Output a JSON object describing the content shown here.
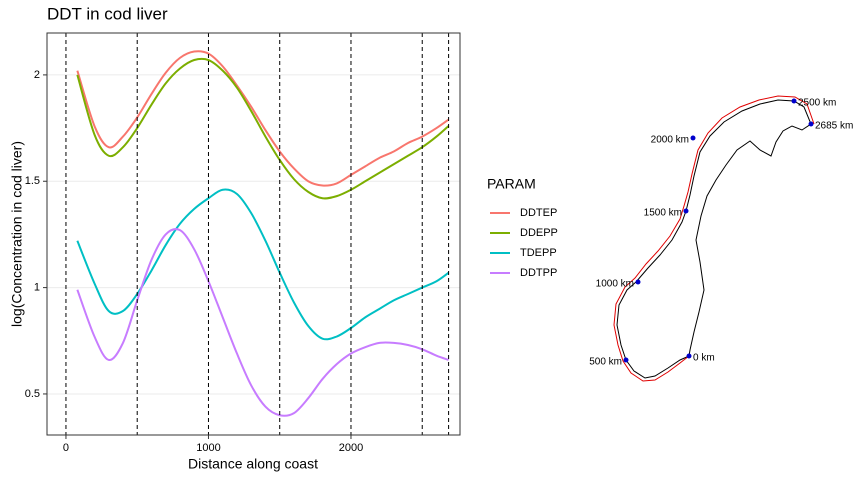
{
  "chart_data": {
    "type": "line",
    "title": "DDT in cod liver",
    "x_label": "Distance along coast",
    "y_label": "log(Concentration in cod liver)",
    "legend_title": "PARAM",
    "x": [
      80,
      200,
      300,
      400,
      500,
      600,
      700,
      800,
      900,
      1000,
      1100,
      1200,
      1300,
      1400,
      1500,
      1600,
      1700,
      1800,
      1900,
      2000,
      2100,
      2200,
      2300,
      2400,
      2500,
      2600,
      2685
    ],
    "series": [
      {
        "name": "DDTEP",
        "color": "#f8766d",
        "values": [
          2.02,
          1.76,
          1.66,
          1.71,
          1.8,
          1.91,
          2.01,
          2.08,
          2.11,
          2.1,
          2.04,
          1.95,
          1.85,
          1.74,
          1.64,
          1.56,
          1.5,
          1.48,
          1.49,
          1.53,
          1.57,
          1.61,
          1.64,
          1.68,
          1.71,
          1.75,
          1.79
        ]
      },
      {
        "name": "DDEPP",
        "color": "#7cae00",
        "values": [
          2.0,
          1.72,
          1.62,
          1.66,
          1.75,
          1.86,
          1.96,
          2.03,
          2.07,
          2.07,
          2.02,
          1.94,
          1.83,
          1.71,
          1.6,
          1.51,
          1.45,
          1.42,
          1.43,
          1.46,
          1.5,
          1.54,
          1.58,
          1.62,
          1.66,
          1.71,
          1.76
        ]
      },
      {
        "name": "TDEPP",
        "color": "#00bfc4",
        "values": [
          1.22,
          1.02,
          0.89,
          0.89,
          0.97,
          1.08,
          1.2,
          1.3,
          1.37,
          1.42,
          1.46,
          1.44,
          1.35,
          1.22,
          1.07,
          0.93,
          0.82,
          0.76,
          0.77,
          0.81,
          0.86,
          0.9,
          0.94,
          0.97,
          1.0,
          1.03,
          1.07
        ]
      },
      {
        "name": "DDTPP",
        "color": "#c77cff",
        "values": [
          0.99,
          0.77,
          0.66,
          0.74,
          0.94,
          1.13,
          1.25,
          1.27,
          1.18,
          1.03,
          0.86,
          0.69,
          0.54,
          0.44,
          0.4,
          0.41,
          0.48,
          0.57,
          0.64,
          0.69,
          0.72,
          0.74,
          0.74,
          0.73,
          0.71,
          0.68,
          0.66
        ]
      }
    ],
    "vlines": [
      0,
      500,
      1000,
      1500,
      2000,
      2500,
      2685
    ],
    "xlim": [
      -133,
      2765
    ],
    "xticks": [
      0,
      1000,
      2000
    ],
    "ylim": [
      0.307,
      2.197
    ],
    "yticks": [
      0.5,
      1.0,
      1.5,
      2.0
    ],
    "grid": true
  },
  "map": {
    "points": [
      "0 km",
      "500 km",
      "1000 km",
      "1500 km",
      "2000 km",
      "2500 km",
      "2685 km"
    ]
  }
}
